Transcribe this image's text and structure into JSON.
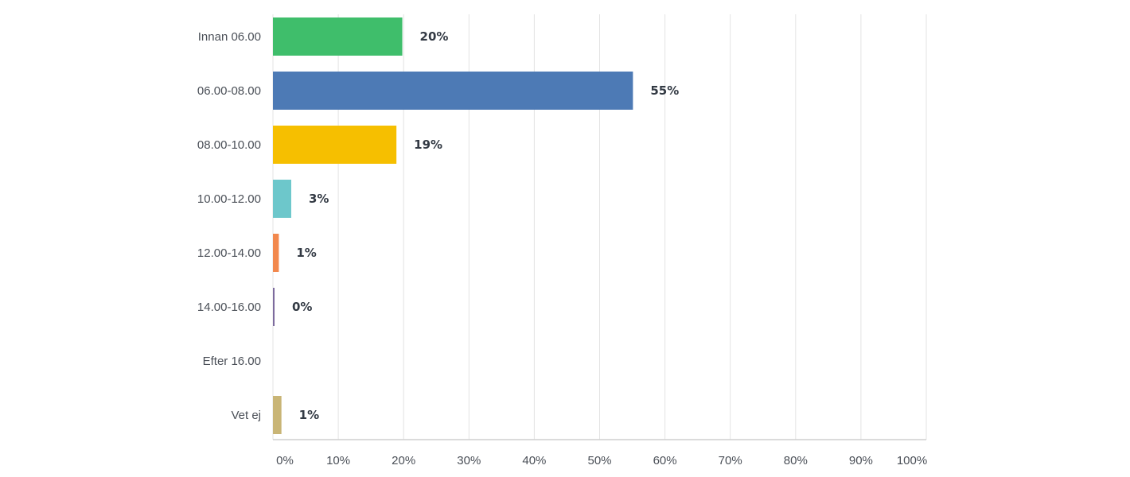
{
  "chart_data": {
    "type": "bar",
    "orientation": "horizontal",
    "categories": [
      "Innan 06.00",
      "06.00-08.00",
      "08.00-10.00",
      "10.00-12.00",
      "12.00-14.00",
      "14.00-16.00",
      "Efter 16.00",
      "Vet ej"
    ],
    "values": [
      19.8,
      55.1,
      18.9,
      2.8,
      0.9,
      0.2,
      0,
      1.3
    ],
    "value_labels": [
      "20%",
      "55%",
      "19%",
      "3%",
      "1%",
      "0%",
      "",
      "1%"
    ],
    "colors": [
      "#3fbe6b",
      "#4d7ab5",
      "#f6bf00",
      "#6dc7cb",
      "#f2884d",
      "#7d6b9e",
      "#b5b5b5",
      "#c9b576"
    ],
    "xlim": [
      0,
      100
    ],
    "x_ticks": [
      "0%",
      "10%",
      "20%",
      "30%",
      "40%",
      "50%",
      "60%",
      "70%",
      "80%",
      "90%",
      "100%"
    ],
    "grid": true
  }
}
